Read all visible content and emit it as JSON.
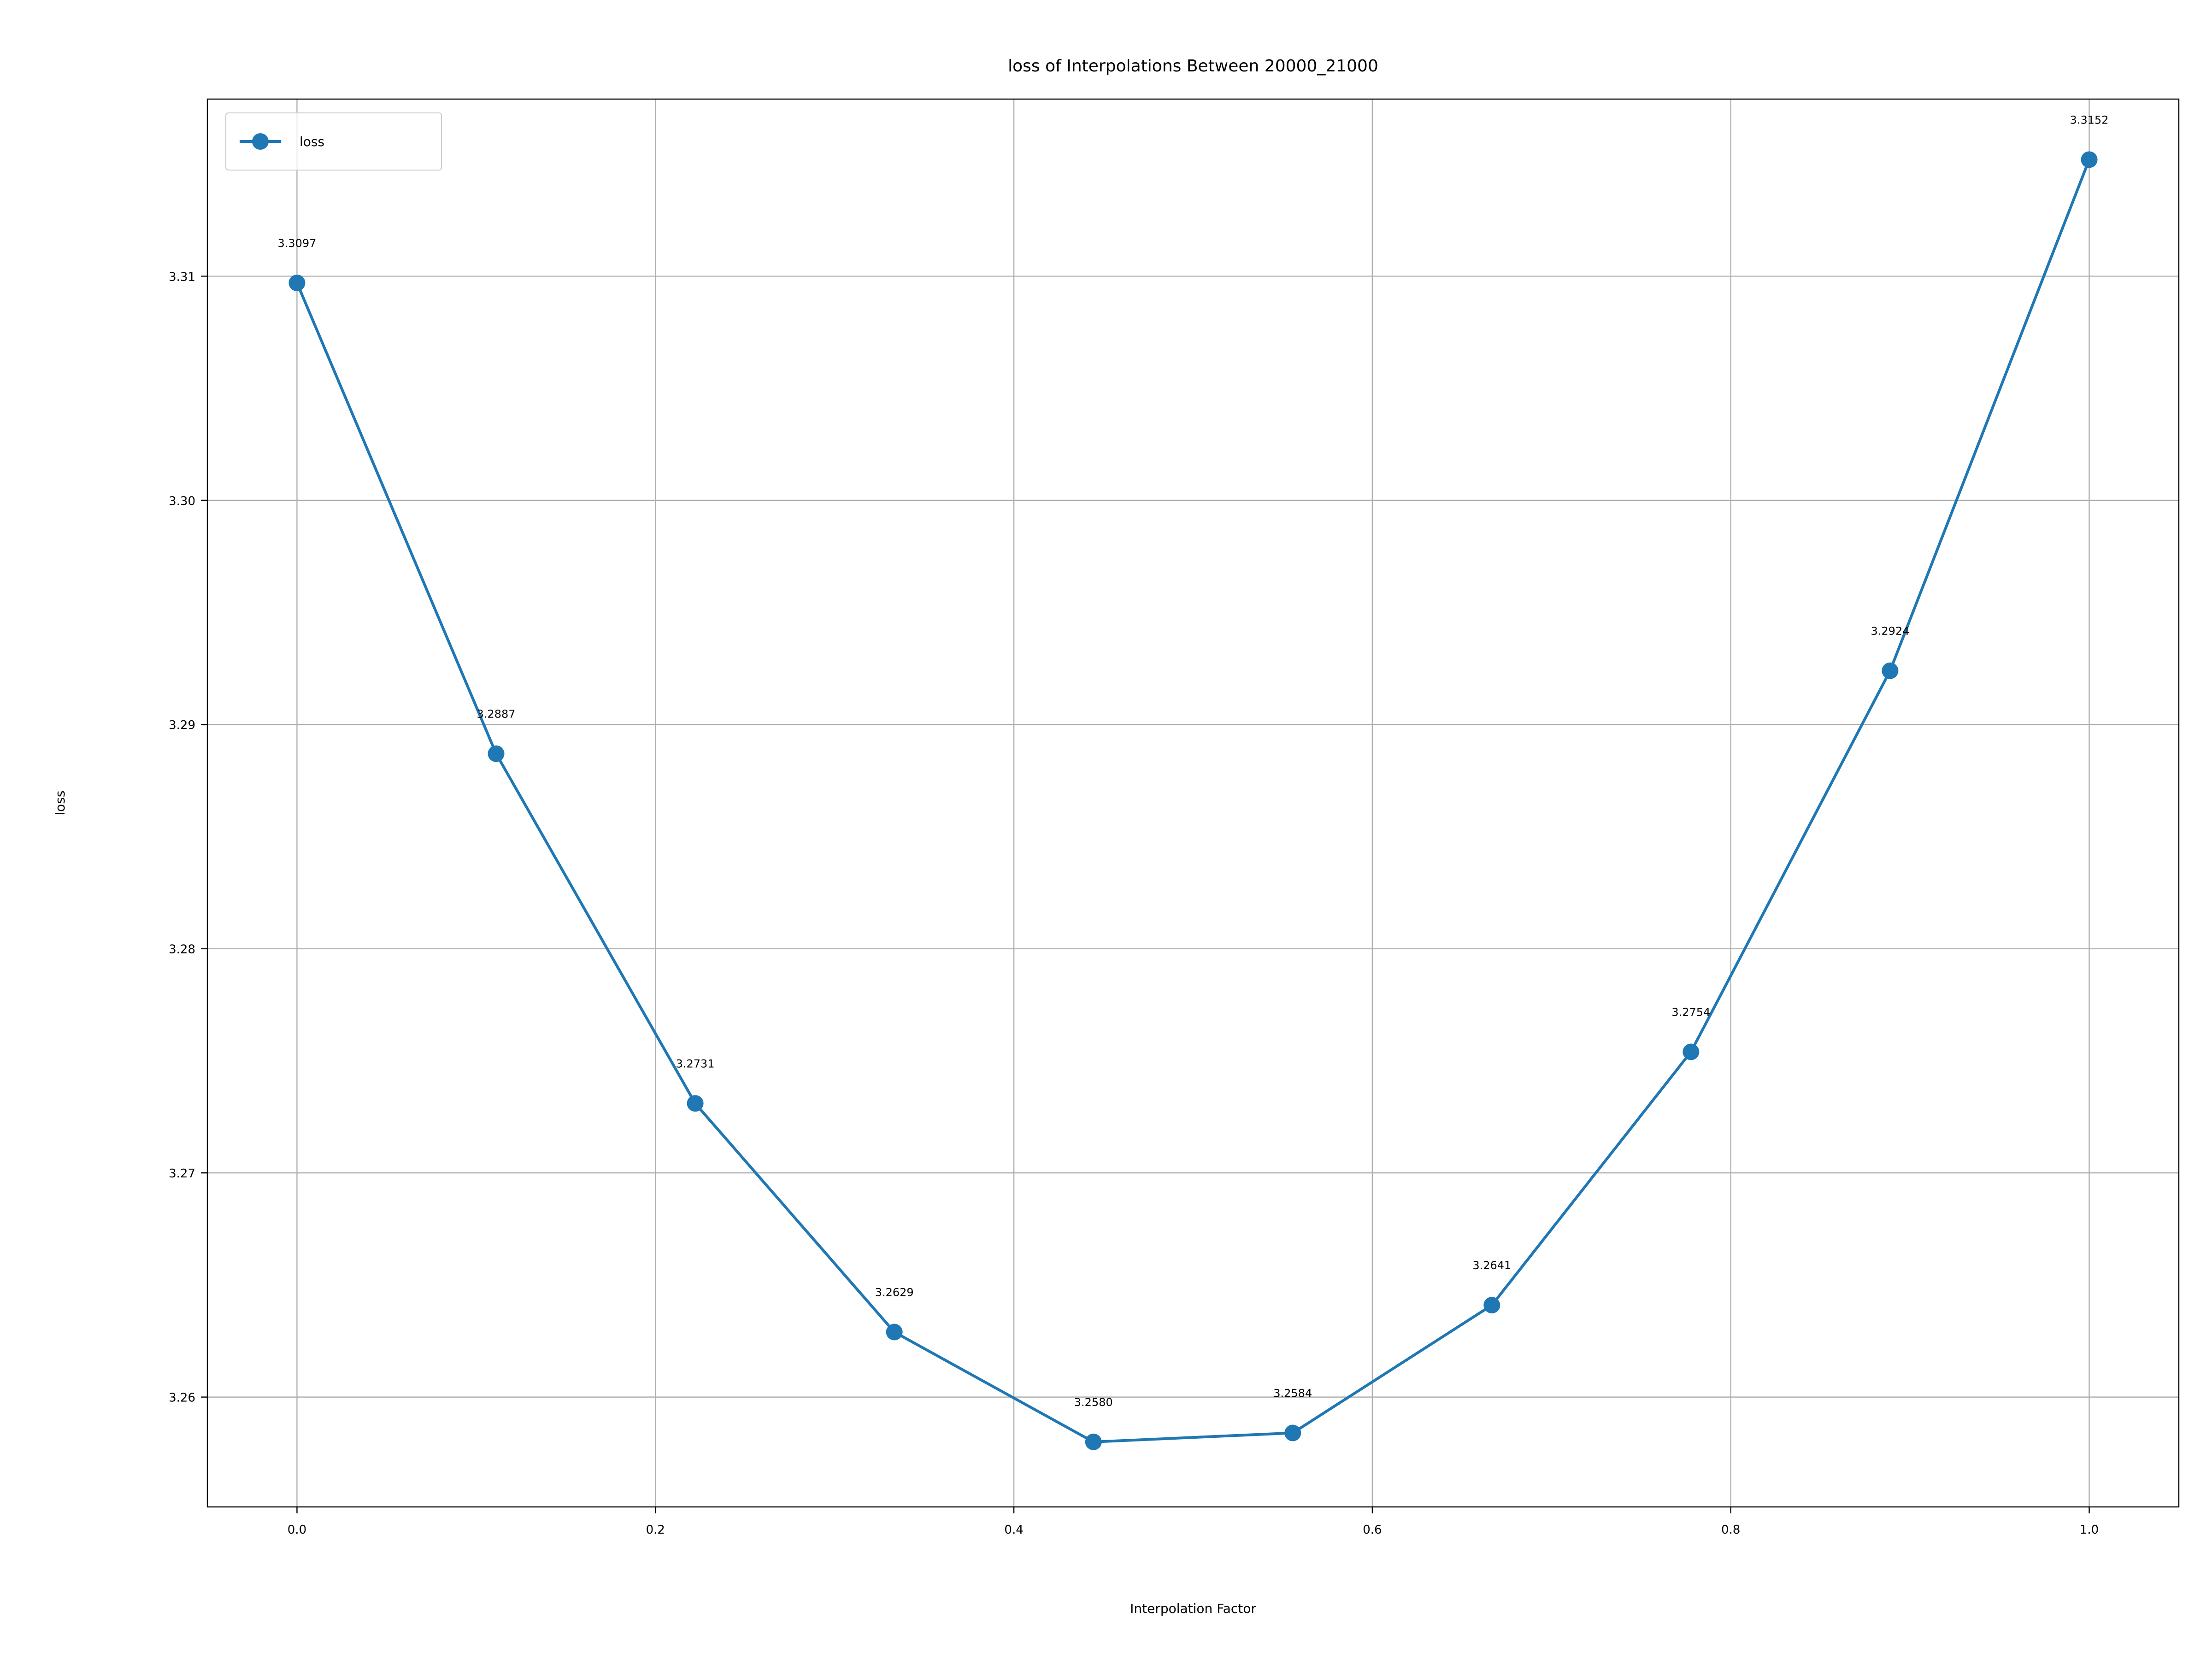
{
  "chart_data": {
    "type": "line",
    "title": "loss of Interpolations Between 20000_21000",
    "xlabel": "Interpolation Factor",
    "ylabel": "loss",
    "xlim": [
      -0.05,
      1.05
    ],
    "ylim": [
      3.2551,
      3.3179
    ],
    "x_ticks": [
      0.0,
      0.2,
      0.4,
      0.6,
      0.8,
      1.0
    ],
    "x_tick_labels": [
      "0.0",
      "0.2",
      "0.4",
      "0.6",
      "0.8",
      "1.0"
    ],
    "y_ticks": [
      3.26,
      3.27,
      3.28,
      3.29,
      3.3,
      3.31
    ],
    "y_tick_labels": [
      "3.26",
      "3.27",
      "3.28",
      "3.29",
      "3.30",
      "3.31"
    ],
    "grid": true,
    "legend_position": "top-left",
    "series": [
      {
        "name": "loss",
        "color": "#1f77b4",
        "marker": "circle",
        "x": [
          0.0,
          0.1111,
          0.2222,
          0.3333,
          0.4444,
          0.5556,
          0.6667,
          0.7778,
          0.8889,
          1.0
        ],
        "values": [
          3.3097,
          3.2887,
          3.2731,
          3.2629,
          3.258,
          3.2584,
          3.2641,
          3.2754,
          3.2924,
          3.3152
        ],
        "labels": [
          "3.3097",
          "3.2887",
          "3.2731",
          "3.2629",
          "3.2580",
          "3.2584",
          "3.2641",
          "3.2754",
          "3.2924",
          "3.3152"
        ]
      }
    ]
  }
}
